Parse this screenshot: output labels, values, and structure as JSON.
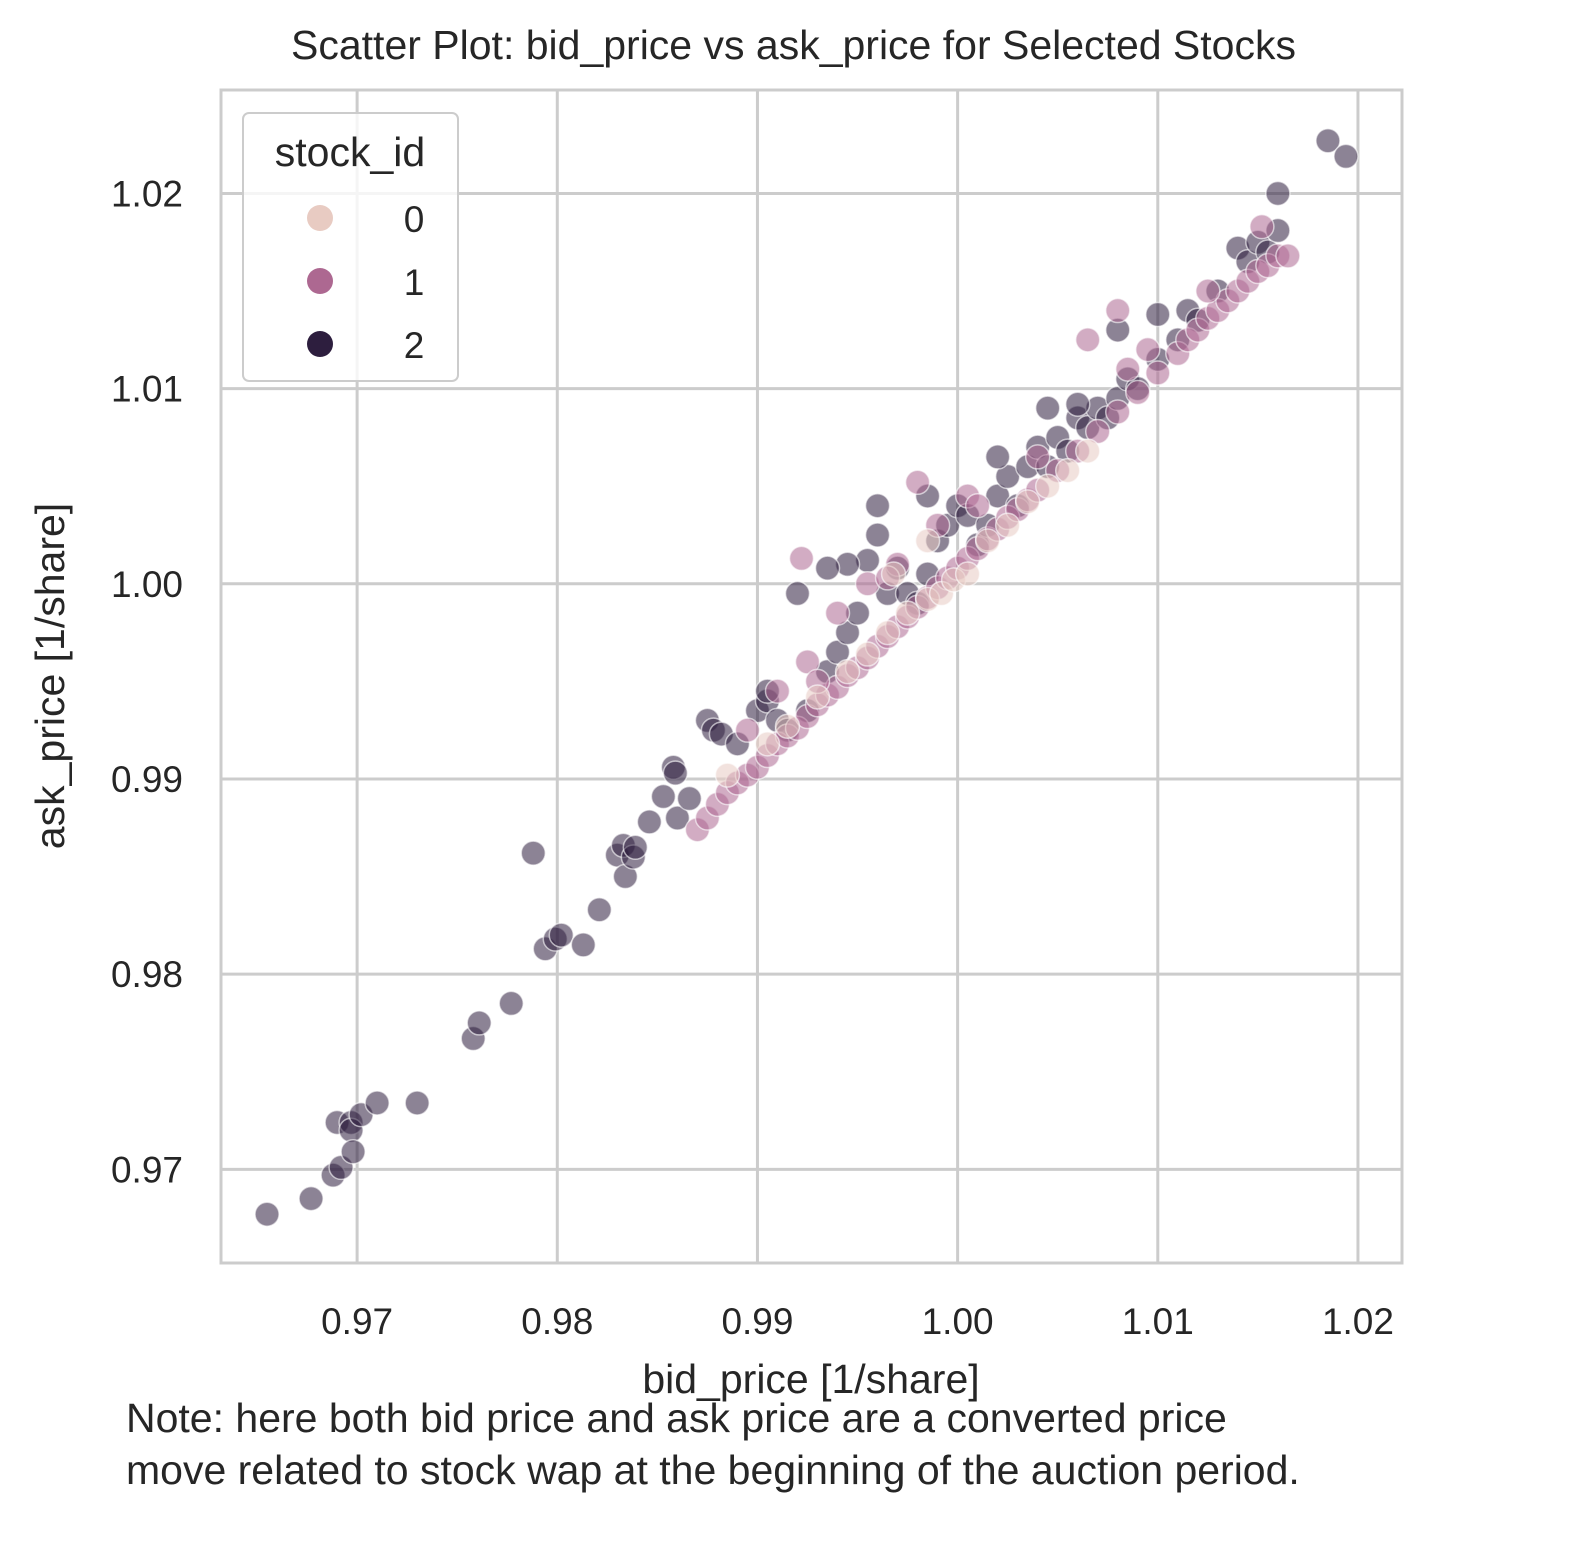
{
  "title": "Scatter Plot: bid_price vs ask_price for Selected Stocks",
  "note": {
    "line1": "Note: here both bid price and ask price are a converted price",
    "line2": "move related to stock wap at the beginning of the auction period."
  },
  "chart_data": {
    "type": "scatter",
    "title": "Scatter Plot: bid_price vs ask_price for Selected Stocks",
    "xlabel": "bid_price [1/share]",
    "ylabel": "ask_price [1/share]",
    "xlim": [
      0.9632,
      1.0222
    ],
    "ylim": [
      0.9652,
      1.0253
    ],
    "xticks": [
      0.97,
      0.98,
      0.99,
      1.0,
      1.01,
      1.02
    ],
    "xtick_labels": [
      "0.97",
      "0.98",
      "0.99",
      "1.00",
      "1.01",
      "1.02"
    ],
    "yticks": [
      0.97,
      0.98,
      0.99,
      1.0,
      1.01,
      1.02
    ],
    "ytick_labels": [
      "0.97",
      "0.98",
      "0.99",
      "1.00",
      "1.01",
      "1.02"
    ],
    "grid": true,
    "legend": {
      "title": "stock_id",
      "placement": "top-left"
    },
    "series": [
      {
        "name": "0",
        "color": "#e8cbc2",
        "points": [
          [
            0.9885,
            0.9902
          ],
          [
            0.9905,
            0.9918
          ],
          [
            0.9915,
            0.9927
          ],
          [
            0.993,
            0.9942
          ],
          [
            0.9945,
            0.9955
          ],
          [
            0.9955,
            0.9964
          ],
          [
            0.9965,
            0.9975
          ],
          [
            0.9975,
            0.9985
          ],
          [
            0.9985,
            0.9992
          ],
          [
            0.9992,
            0.9995
          ],
          [
            0.9998,
            1.0002
          ],
          [
            1.0005,
            1.0005
          ],
          [
            1.0015,
            1.0022
          ],
          [
            1.0025,
            1.003
          ],
          [
            1.0035,
            1.0042
          ],
          [
            1.0045,
            1.005
          ],
          [
            0.9985,
            1.0022
          ],
          [
            0.9968,
            1.0005
          ],
          [
            1.0055,
            1.0058
          ],
          [
            1.0065,
            1.0068
          ]
        ]
      },
      {
        "name": "1",
        "color": "#ad6891",
        "points": [
          [
            0.987,
            0.9874
          ],
          [
            0.9875,
            0.988
          ],
          [
            0.988,
            0.9887
          ],
          [
            0.9885,
            0.9893
          ],
          [
            0.989,
            0.9898
          ],
          [
            0.9895,
            0.9902
          ],
          [
            0.99,
            0.9906
          ],
          [
            0.9905,
            0.9912
          ],
          [
            0.991,
            0.9918
          ],
          [
            0.9915,
            0.9922
          ],
          [
            0.992,
            0.9926
          ],
          [
            0.9925,
            0.9932
          ],
          [
            0.993,
            0.9938
          ],
          [
            0.9935,
            0.9943
          ],
          [
            0.994,
            0.9947
          ],
          [
            0.9945,
            0.9953
          ],
          [
            0.995,
            0.9957
          ],
          [
            0.9955,
            0.9962
          ],
          [
            0.996,
            0.9968
          ],
          [
            0.9965,
            0.9973
          ],
          [
            0.997,
            0.9978
          ],
          [
            0.9975,
            0.9983
          ],
          [
            0.998,
            0.9988
          ],
          [
            0.9985,
            0.9993
          ],
          [
            0.999,
            0.9998
          ],
          [
            0.9995,
            1.0003
          ],
          [
            1.0,
            1.0008
          ],
          [
            1.0005,
            1.0013
          ],
          [
            1.001,
            1.0018
          ],
          [
            1.0015,
            1.0023
          ],
          [
            1.002,
            1.0028
          ],
          [
            1.0025,
            1.0034
          ],
          [
            1.003,
            1.0038
          ],
          [
            1.0035,
            1.0043
          ],
          [
            1.004,
            1.0048
          ],
          [
            1.005,
            1.0058
          ],
          [
            1.006,
            1.0068
          ],
          [
            1.007,
            1.0078
          ],
          [
            1.008,
            1.0088
          ],
          [
            1.009,
            1.0098
          ],
          [
            1.01,
            1.0108
          ],
          [
            1.011,
            1.0118
          ],
          [
            1.0115,
            1.0125
          ],
          [
            1.012,
            1.013
          ],
          [
            1.0125,
            1.0136
          ],
          [
            1.013,
            1.014
          ],
          [
            1.0135,
            1.0145
          ],
          [
            1.014,
            1.015
          ],
          [
            1.0145,
            1.0155
          ],
          [
            1.015,
            1.016
          ],
          [
            1.0155,
            1.0163
          ],
          [
            1.016,
            1.0168
          ],
          [
            1.0165,
            1.0168
          ],
          [
            1.0152,
            1.0183
          ],
          [
            1.0125,
            1.015
          ],
          [
            0.9922,
            1.0013
          ],
          [
            0.998,
            1.0052
          ],
          [
            1.0065,
            1.0125
          ],
          [
            1.008,
            1.014
          ],
          [
            0.9955,
            1.0
          ],
          [
            0.997,
            1.001
          ],
          [
            0.999,
            1.003
          ],
          [
            1.0005,
            1.0045
          ],
          [
            0.994,
            0.9985
          ],
          [
            0.9925,
            0.996
          ],
          [
            0.991,
            0.9945
          ],
          [
            0.9895,
            0.9925
          ],
          [
            0.993,
            0.995
          ],
          [
            0.9965,
            1.0003
          ],
          [
            1.001,
            1.004
          ],
          [
            1.004,
            1.0065
          ],
          [
            1.0085,
            1.011
          ],
          [
            1.0095,
            1.012
          ]
        ]
      },
      {
        "name": "2",
        "color": "#2d1e3e",
        "points": [
          [
            0.9655,
            0.9677
          ],
          [
            0.9677,
            0.9685
          ],
          [
            0.9688,
            0.9697
          ],
          [
            0.9692,
            0.9701
          ],
          [
            0.969,
            0.9724
          ],
          [
            0.9697,
            0.9724
          ],
          [
            0.9697,
            0.972
          ],
          [
            0.9698,
            0.9709
          ],
          [
            0.9702,
            0.9728
          ],
          [
            0.971,
            0.9734
          ],
          [
            0.973,
            0.9734
          ],
          [
            0.9758,
            0.9767
          ],
          [
            0.9761,
            0.9775
          ],
          [
            0.9777,
            0.9785
          ],
          [
            0.9788,
            0.9862
          ],
          [
            0.9794,
            0.9813
          ],
          [
            0.9799,
            0.9818
          ],
          [
            0.9802,
            0.982
          ],
          [
            0.9813,
            0.9815
          ],
          [
            0.9821,
            0.9833
          ],
          [
            0.983,
            0.9861
          ],
          [
            0.9833,
            0.9866
          ],
          [
            0.9834,
            0.985
          ],
          [
            0.9838,
            0.986
          ],
          [
            0.9839,
            0.9865
          ],
          [
            0.9846,
            0.9878
          ],
          [
            0.9853,
            0.9891
          ],
          [
            0.9858,
            0.9906
          ],
          [
            0.9859,
            0.9903
          ],
          [
            0.986,
            0.988
          ],
          [
            0.9866,
            0.989
          ],
          [
            0.9875,
            0.993
          ],
          [
            0.9878,
            0.9925
          ],
          [
            0.9882,
            0.9923
          ],
          [
            0.989,
            0.9918
          ],
          [
            0.99,
            0.9935
          ],
          [
            0.9905,
            0.994
          ],
          [
            0.991,
            0.993
          ],
          [
            0.9915,
            0.9925
          ],
          [
            0.9925,
            0.9935
          ],
          [
            0.9935,
            0.9955
          ],
          [
            0.994,
            0.9965
          ],
          [
            0.9945,
            0.9975
          ],
          [
            0.995,
            0.9985
          ],
          [
            0.9955,
            1.0012
          ],
          [
            0.996,
            1.0025
          ],
          [
            0.9965,
            0.9995
          ],
          [
            0.997,
            1.0008
          ],
          [
            0.9975,
            0.9995
          ],
          [
            0.998,
            0.999
          ],
          [
            0.9985,
            1.0005
          ],
          [
            0.999,
            1.0022
          ],
          [
            0.9995,
            1.003
          ],
          [
            1.0,
            1.004
          ],
          [
            1.0005,
            1.0035
          ],
          [
            1.001,
            1.002
          ],
          [
            1.0015,
            1.003
          ],
          [
            1.002,
            1.0045
          ],
          [
            1.0025,
            1.0055
          ],
          [
            1.003,
            1.004
          ],
          [
            1.0035,
            1.006
          ],
          [
            1.004,
            1.007
          ],
          [
            1.0045,
            1.006
          ],
          [
            1.005,
            1.0075
          ],
          [
            1.0055,
            1.0068
          ],
          [
            1.006,
            1.0085
          ],
          [
            1.0065,
            1.008
          ],
          [
            1.007,
            1.009
          ],
          [
            1.0075,
            1.0085
          ],
          [
            1.008,
            1.0095
          ],
          [
            1.0085,
            1.0105
          ],
          [
            1.009,
            1.01
          ],
          [
            1.01,
            1.0115
          ],
          [
            1.011,
            1.0125
          ],
          [
            1.0115,
            1.014
          ],
          [
            1.012,
            1.0135
          ],
          [
            1.013,
            1.015
          ],
          [
            1.014,
            1.0172
          ],
          [
            1.0145,
            1.0165
          ],
          [
            1.015,
            1.0175
          ],
          [
            1.0155,
            1.017
          ],
          [
            1.016,
            1.0181
          ],
          [
            1.016,
            1.02
          ],
          [
            1.0185,
            1.0227
          ],
          [
            1.0194,
            1.0219
          ],
          [
            0.9945,
            1.001
          ],
          [
            0.9935,
            1.0008
          ],
          [
            0.992,
            0.9995
          ],
          [
            0.996,
            1.004
          ],
          [
            0.9985,
            1.0045
          ],
          [
            1.002,
            1.0065
          ],
          [
            1.0045,
            1.009
          ],
          [
            1.006,
            1.0092
          ],
          [
            1.008,
            1.013
          ],
          [
            1.01,
            1.0138
          ],
          [
            0.9905,
            0.9945
          ]
        ]
      }
    ]
  }
}
